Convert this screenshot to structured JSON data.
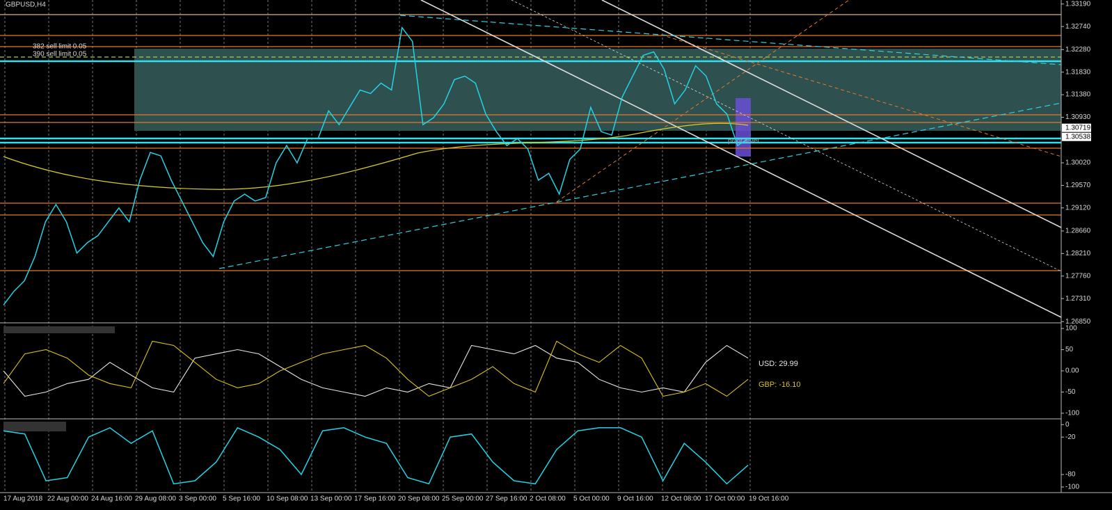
{
  "header": {
    "title": "GBPUSD,H4"
  },
  "orders": [
    "382 sell limit 0.05",
    "390 sell limit 0.05"
  ],
  "pivot_label": "pivot level",
  "time_axis": [
    "17 Aug 2018",
    "22 Aug 00:00",
    "24 Aug 16:00",
    "29 Aug 08:00",
    "3 Sep 00:00",
    "5 Sep 16:00",
    "10 Sep 08:00",
    "13 Sep 00:00",
    "17 Sep 16:00",
    "20 Sep 08:00",
    "25 Sep 00:00",
    "27 Sep 16:00",
    "2 Oct 08:00",
    "5 Oct 00:00",
    "9 Oct 16:00",
    "12 Oct 08:00",
    "17 Oct 00:00",
    "19 Oct 16:00"
  ],
  "chart_data": [
    {
      "type": "line",
      "color": "#22d3e6",
      "values": [
        1.27181,
        1.27457,
        1.27665,
        1.2815,
        1.28842,
        1.29188,
        1.28842,
        1.28219,
        1.28427,
        1.28565,
        1.28842,
        1.29119,
        1.28842,
        1.29673,
        1.30227,
        1.30158,
        1.29673,
        1.29258,
        1.28842,
        1.28427,
        1.2815,
        1.28842,
        1.29258,
        1.29396,
        1.29258,
        1.29327,
        1.30019,
        1.30365,
        1.30019,
        1.30504,
        1.30504,
        1.31058,
        1.30781,
        1.31127,
        1.31473,
        1.31404,
        1.31611,
        1.31473,
        1.32719,
        1.32442,
        1.30781,
        1.30919,
        1.31196,
        1.31681,
        1.3175,
        1.31611,
        1.30988,
        1.30642,
        1.30365,
        1.30504,
        1.30296,
        1.29673,
        1.29811,
        1.29396,
        1.30088,
        1.30296,
        1.31127,
        1.30642,
        1.30573,
        1.31335,
        1.3175,
        1.32165,
        1.32235,
        1.31888,
        1.31196,
        1.31473,
        1.31958,
        1.3175,
        1.31196,
        1.30988,
        1.30365,
        1.30504
      ],
      "ylim": [
        1.2684,
        1.3327
      ],
      "yticks": [
        {
          "value": 1.3319,
          "label": "1.33190"
        },
        {
          "value": 1.3274,
          "label": "1.32740"
        },
        {
          "value": 1.3228,
          "label": "1.32280"
        },
        {
          "value": 1.3183,
          "label": "1.31830"
        },
        {
          "value": 1.3138,
          "label": "1.31380"
        },
        {
          "value": 1.3093,
          "label": "1.30930"
        },
        {
          "value": 1.3002,
          "label": "1.30020"
        },
        {
          "value": 1.2957,
          "label": "1.29570"
        },
        {
          "value": 1.2912,
          "label": "1.29120"
        },
        {
          "value": 1.2866,
          "label": "1.28660"
        },
        {
          "value": 1.2821,
          "label": "1.28210"
        },
        {
          "value": 1.2776,
          "label": "1.27760"
        },
        {
          "value": 1.2731,
          "label": "1.27310"
        },
        {
          "value": 1.2685,
          "label": "1.26850"
        }
      ],
      "price_labels": [
        1.30719,
        1.30538
      ]
    },
    {
      "type": "line",
      "series": [
        {
          "label": "USD: 29.99",
          "color": "#e6e6e6",
          "values": [
            0,
            -60,
            -50,
            -30,
            -20,
            20,
            -10,
            -40,
            -50,
            30,
            40,
            50,
            40,
            10,
            -20,
            -40,
            -50,
            -60,
            -40,
            -50,
            -30,
            -40,
            60,
            50,
            40,
            60,
            30,
            20,
            -20,
            -40,
            -50,
            -40,
            -50,
            20,
            60,
            30
          ]
        },
        {
          "label": "GBP: -16.10",
          "color": "#d9c21a",
          "values": [
            -30,
            40,
            50,
            30,
            -10,
            -30,
            -40,
            70,
            60,
            20,
            -20,
            -40,
            -30,
            0,
            20,
            40,
            50,
            60,
            30,
            -20,
            -60,
            -40,
            -20,
            10,
            -30,
            -50,
            70,
            40,
            20,
            60,
            30,
            -60,
            -50,
            -30,
            -60,
            -20
          ]
        }
      ],
      "ylim": [
        -110,
        110
      ],
      "yticks": [
        100,
        50,
        {
          "value": 0,
          "label": "0.00"
        },
        -50,
        -100
      ]
    },
    {
      "type": "line",
      "color": "#22d3e6",
      "values": [
        -10,
        -15,
        -90,
        -85,
        -20,
        -5,
        -30,
        -10,
        -95,
        -90,
        -60,
        -5,
        -20,
        -40,
        -80,
        -10,
        -5,
        -20,
        -30,
        -85,
        -95,
        -20,
        -15,
        -60,
        -90,
        -95,
        -40,
        -10,
        -5,
        -5,
        -20,
        -90,
        -30,
        -60,
        -95,
        -65
      ],
      "ylim": [
        -109,
        7
      ],
      "yticks": [
        0,
        -20,
        -80,
        -100
      ]
    }
  ]
}
